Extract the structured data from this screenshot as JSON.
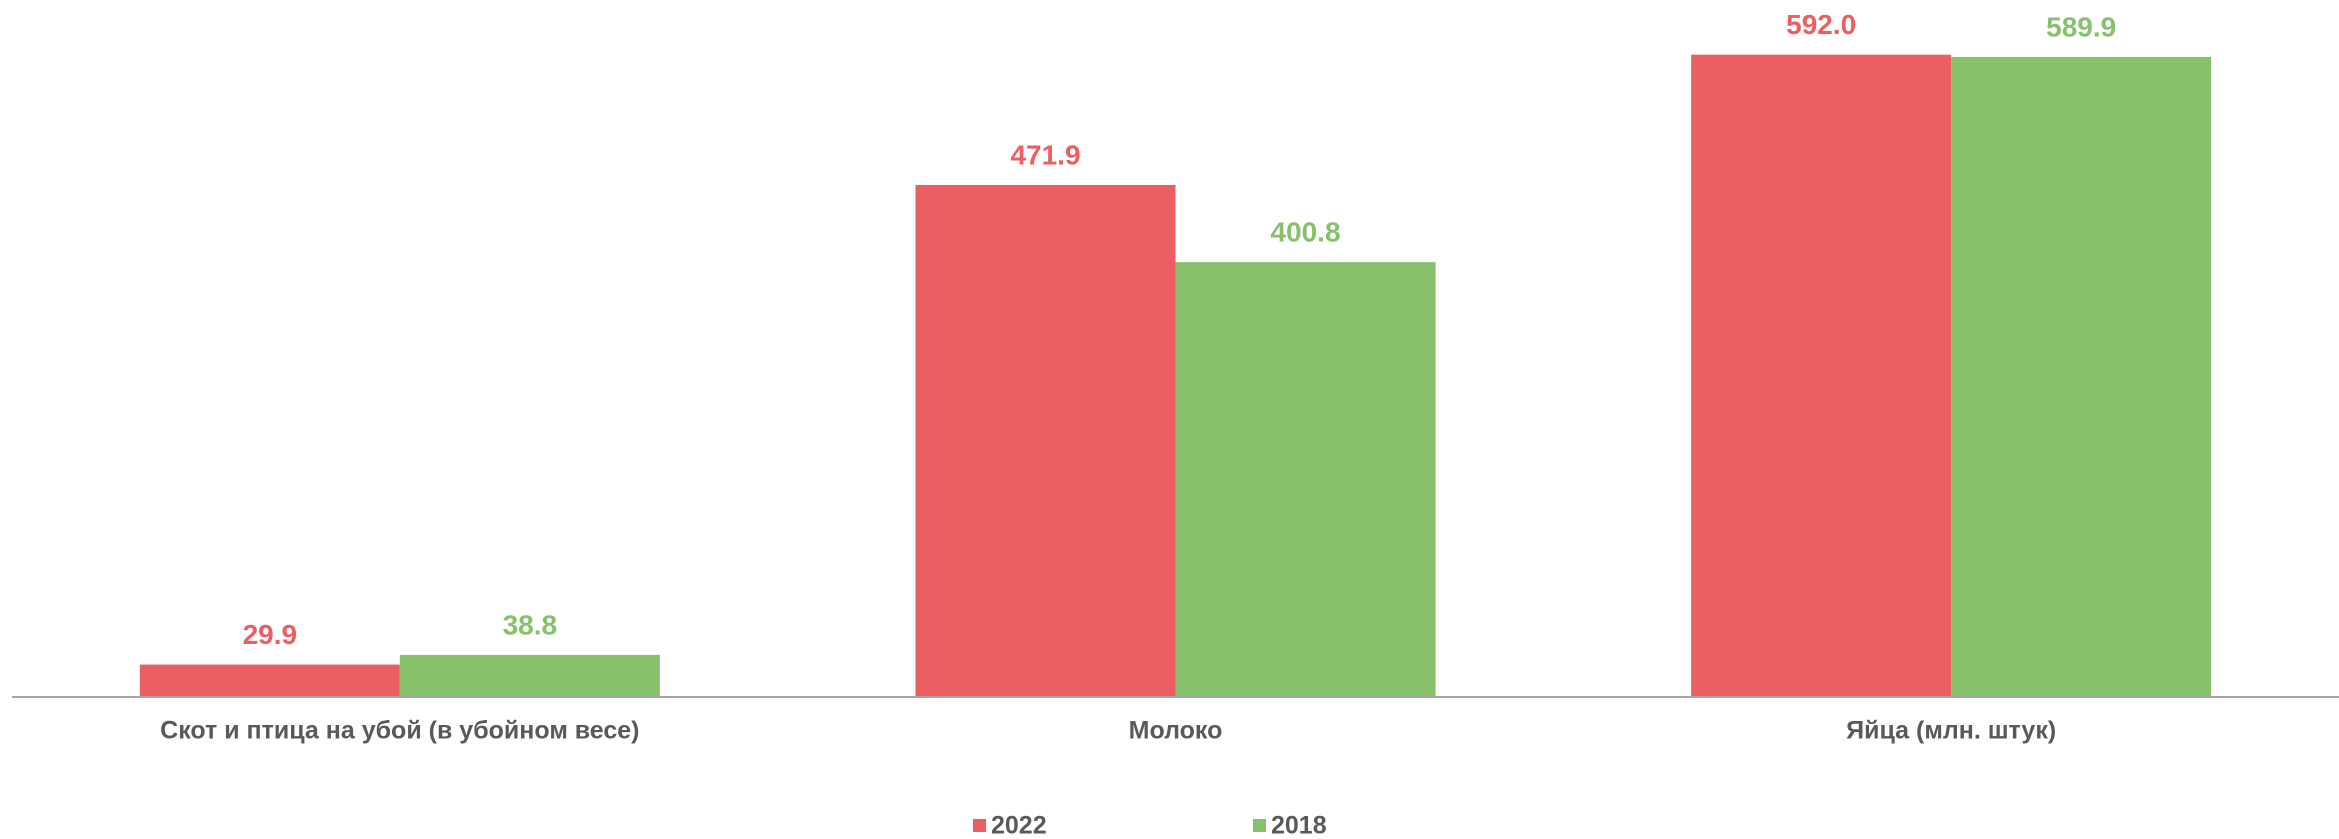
{
  "chart_data": {
    "type": "bar",
    "categories": [
      "Скот и птица на убой (в убойном весе)",
      "Молоко",
      "Яйца (млн. штук)"
    ],
    "series": [
      {
        "name": "2022",
        "color": "#eb5e62",
        "values": [
          29.9,
          471.9,
          592.0
        ],
        "value_labels": [
          "29.9",
          "471.9",
          "592.0"
        ]
      },
      {
        "name": "2018",
        "color": "#87c16c",
        "values": [
          38.8,
          400.8,
          589.9
        ],
        "value_labels": [
          "38.8",
          "400.8",
          "589.9"
        ]
      }
    ],
    "ylim": [
      0,
      600
    ],
    "legend": "bottom"
  }
}
